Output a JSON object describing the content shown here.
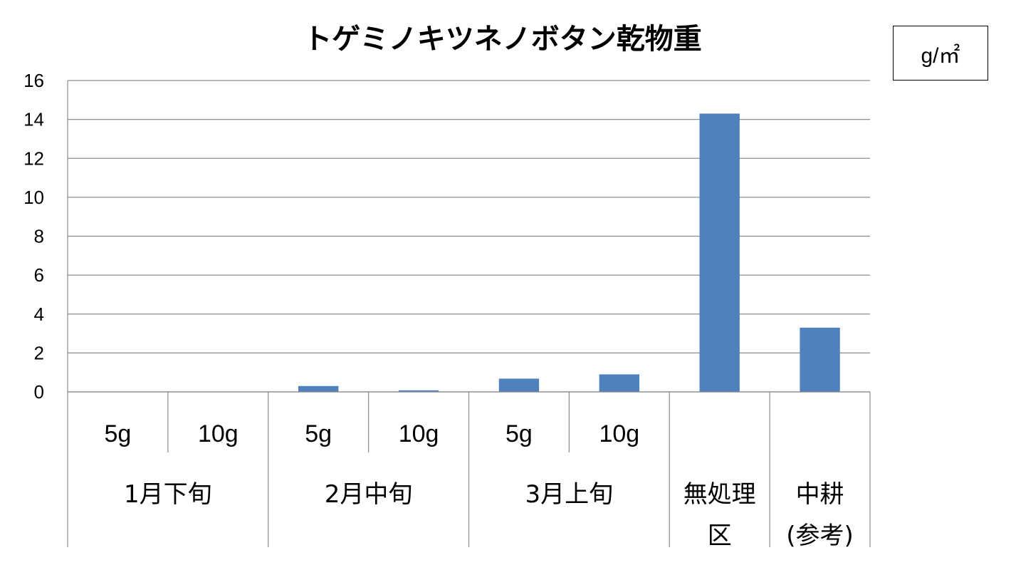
{
  "unit_label": "g/㎡",
  "chart_data": {
    "type": "bar",
    "title": "トゲミノキツネノボタン乾物重",
    "xlabel": "",
    "ylabel": "",
    "ylim": [
      0,
      16
    ],
    "yticks": [
      "0",
      "2",
      "4",
      "6",
      "8",
      "10",
      "12",
      "14",
      "16"
    ],
    "grid": true,
    "legend": "none",
    "bar_color": "#4f81bd",
    "categories": [
      {
        "sub": "5g",
        "group": "1月下旬"
      },
      {
        "sub": "10g",
        "group": "1月下旬"
      },
      {
        "sub": "5g",
        "group": "2月中旬"
      },
      {
        "sub": "10g",
        "group": "2月中旬"
      },
      {
        "sub": "5g",
        "group": "3月上旬"
      },
      {
        "sub": "10g",
        "group": "3月上旬"
      },
      {
        "sub": "",
        "group": "無処理区"
      },
      {
        "sub": "",
        "group": "中耕(参考)"
      }
    ],
    "groups": [
      {
        "label_lines": [
          "1月下旬"
        ]
      },
      {
        "label_lines": [
          "2月中旬"
        ]
      },
      {
        "label_lines": [
          "3月上旬"
        ]
      },
      {
        "label_lines": [
          "無処理",
          "区"
        ]
      },
      {
        "label_lines": [
          "中耕",
          "(参考)"
        ]
      }
    ],
    "values": [
      0,
      0,
      0.3,
      0.08,
      0.68,
      0.9,
      14.3,
      3.3
    ]
  }
}
